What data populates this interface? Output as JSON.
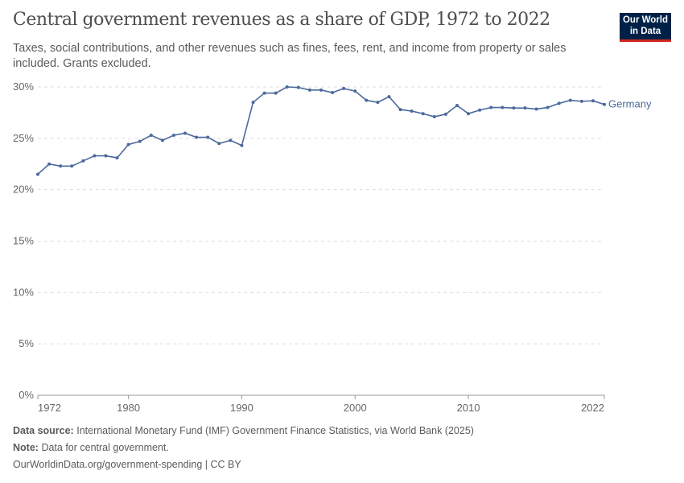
{
  "header": {
    "title": "Central government revenues as a share of GDP, 1972 to 2022",
    "subtitle": "Taxes, social contributions, and other revenues such as fines, fees, rent, and income from property or sales included. Grants excluded.",
    "logo_line1": "Our World",
    "logo_line2": "in Data"
  },
  "chart_data": {
    "type": "line",
    "title": "Central government revenues as a share of GDP, 1972 to 2022",
    "xlim": [
      1972,
      2022
    ],
    "ylim": [
      0,
      30
    ],
    "x_ticks": [
      "1972",
      "1980",
      "1990",
      "2000",
      "2010",
      "2022"
    ],
    "y_ticks": [
      "0%",
      "5%",
      "10%",
      "15%",
      "20%",
      "25%",
      "30%"
    ],
    "grid": "horizontal dashed",
    "series": [
      {
        "name": "Germany",
        "color": "#4c6a9c",
        "x": [
          1972,
          1973,
          1974,
          1975,
          1976,
          1977,
          1978,
          1979,
          1980,
          1981,
          1982,
          1983,
          1984,
          1985,
          1986,
          1987,
          1988,
          1989,
          1990,
          1991,
          1992,
          1993,
          1994,
          1995,
          1996,
          1997,
          1998,
          1999,
          2000,
          2001,
          2002,
          2003,
          2004,
          2005,
          2006,
          2007,
          2008,
          2009,
          2010,
          2011,
          2012,
          2013,
          2014,
          2015,
          2016,
          2017,
          2018,
          2019,
          2020,
          2021,
          2022
        ],
        "y": [
          21.5,
          22.5,
          22.3,
          22.3,
          22.8,
          23.3,
          23.3,
          23.1,
          24.4,
          24.7,
          25.3,
          24.8,
          25.3,
          25.5,
          25.1,
          25.1,
          24.5,
          24.8,
          24.3,
          28.5,
          29.4,
          29.4,
          30.0,
          29.95,
          29.7,
          29.7,
          29.45,
          29.85,
          29.6,
          28.7,
          28.5,
          29.05,
          27.8,
          27.65,
          27.4,
          27.1,
          27.35,
          28.2,
          27.4,
          27.75,
          28.0,
          28.0,
          27.95,
          27.95,
          27.85,
          28.0,
          28.4,
          28.7,
          28.6,
          28.65,
          28.3
        ]
      }
    ]
  },
  "footer": {
    "source_label": "Data source:",
    "source": "International Monetary Fund (IMF) Government Finance Statistics, via World Bank (2025)",
    "note_label": "Note:",
    "note": "Data for central government.",
    "url": "OurWorldinData.org/government-spending | CC BY"
  }
}
